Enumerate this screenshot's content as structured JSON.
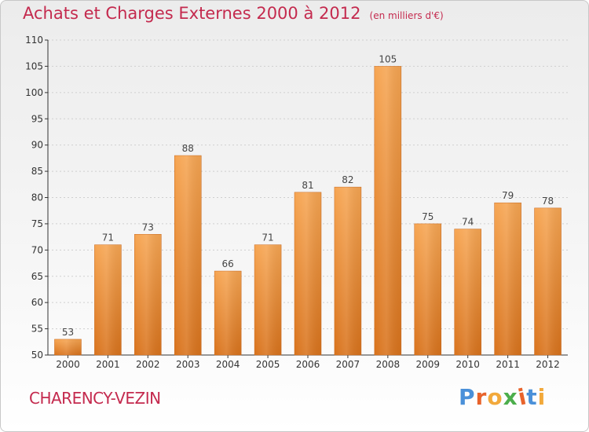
{
  "header": {
    "title": "Achats et Charges Externes 2000 à 2012",
    "subtitle": "(en milliers d'€)"
  },
  "footer": {
    "commune": "CHARENCY-VEZIN",
    "logo_text": "Proxiti",
    "logo_colors": [
      "#4a90d9",
      "#e8632b",
      "#f2a93b",
      "#4cae4c",
      "#e8632b",
      "#4a90d9",
      "#f2a93b"
    ]
  },
  "colors": {
    "bar_light": "#f6a552",
    "bar_dark": "#d9731c",
    "title": "#c42a4e",
    "axis": "#333333",
    "grid": "#cfcfcf"
  },
  "chart_data": {
    "type": "bar",
    "title": "Achats et Charges Externes 2000 à 2012",
    "subtitle": "(en milliers d'€)",
    "categories": [
      "2000",
      "2001",
      "2002",
      "2003",
      "2004",
      "2005",
      "2006",
      "2007",
      "2008",
      "2009",
      "2010",
      "2011",
      "2012"
    ],
    "values": [
      53,
      71,
      73,
      88,
      66,
      71,
      81,
      82,
      105,
      75,
      74,
      79,
      78
    ],
    "ylim": [
      50,
      110
    ],
    "yticks": [
      50,
      55,
      60,
      65,
      70,
      75,
      80,
      85,
      90,
      95,
      100,
      105,
      110
    ],
    "grid": true,
    "data_labels": true
  }
}
